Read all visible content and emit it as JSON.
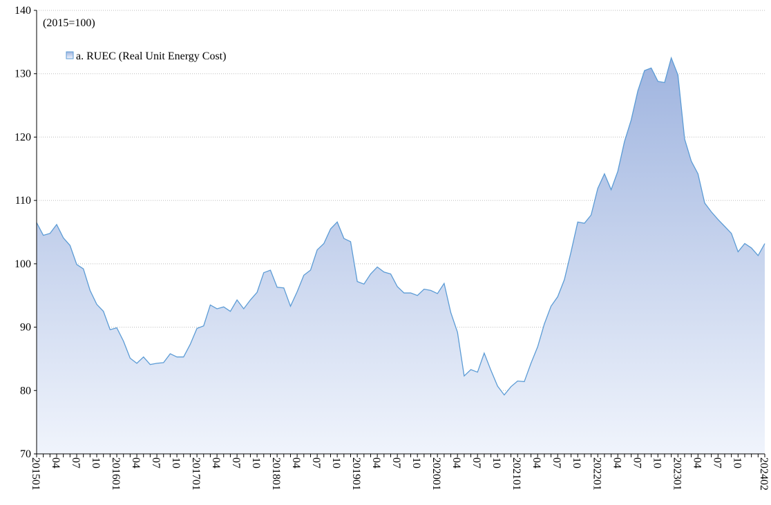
{
  "chart_data": {
    "type": "area",
    "annotation": "(2015=100)",
    "categories": [
      "201501",
      null,
      null,
      "04",
      null,
      null,
      "07",
      null,
      null,
      "10",
      null,
      null,
      "201601",
      null,
      null,
      "04",
      null,
      null,
      "07",
      null,
      null,
      "10",
      null,
      null,
      "201701",
      null,
      null,
      "04",
      null,
      null,
      "07",
      null,
      null,
      "10",
      null,
      null,
      "201801",
      null,
      null,
      "04",
      null,
      null,
      "07",
      null,
      null,
      "10",
      null,
      null,
      "201901",
      null,
      null,
      "04",
      null,
      null,
      "07",
      null,
      null,
      "10",
      null,
      null,
      "202001",
      null,
      null,
      "04",
      null,
      null,
      "07",
      null,
      null,
      "10",
      null,
      null,
      "202101",
      null,
      null,
      "04",
      null,
      null,
      "07",
      null,
      null,
      "10",
      null,
      null,
      "202201",
      null,
      null,
      "04",
      null,
      null,
      "07",
      null,
      null,
      "10",
      null,
      null,
      "202301",
      null,
      null,
      "04",
      null,
      null,
      "07",
      null,
      null,
      "10",
      null,
      null,
      null,
      "202402"
    ],
    "series": [
      {
        "name": "a. RUEC (Real Unit Energy Cost)",
        "color": "#5b9bd5",
        "values": [
          106.5,
          104.5,
          104.8,
          106.2,
          104.1,
          102.9,
          99.9,
          99.2,
          95.8,
          93.6,
          92.5,
          89.6,
          89.9,
          87.8,
          85.1,
          84.3,
          85.3,
          84.1,
          84.3,
          84.4,
          85.8,
          85.3,
          85.3,
          87.3,
          89.8,
          90.2,
          93.5,
          92.9,
          93.2,
          92.5,
          94.3,
          92.9,
          94.3,
          95.5,
          98.6,
          99.0,
          96.3,
          96.2,
          93.3,
          95.6,
          98.2,
          99.0,
          102.2,
          103.2,
          105.5,
          106.6,
          104.0,
          103.5,
          97.2,
          96.8,
          98.4,
          99.5,
          98.7,
          98.4,
          96.4,
          95.4,
          95.4,
          95.0,
          96.0,
          95.8,
          95.3,
          96.9,
          92.3,
          89.2,
          82.3,
          83.3,
          82.9,
          85.9,
          83.2,
          80.7,
          79.3,
          80.6,
          81.5,
          81.4,
          84.3,
          86.9,
          90.5,
          93.3,
          94.8,
          97.5,
          101.9,
          106.6,
          106.4,
          107.7,
          111.9,
          114.2,
          111.7,
          114.6,
          119.3,
          122.7,
          127.3,
          130.5,
          130.9,
          128.8,
          128.6,
          132.5,
          129.8,
          119.7,
          116.2,
          114.2,
          109.6,
          108.2,
          107.0,
          105.9,
          104.8,
          101.9,
          103.2,
          102.5,
          101.3,
          103.2
        ]
      }
    ],
    "ylim": [
      70,
      140
    ],
    "yticks": [
      70,
      80,
      90,
      100,
      110,
      120,
      130,
      140
    ],
    "grid": true
  }
}
